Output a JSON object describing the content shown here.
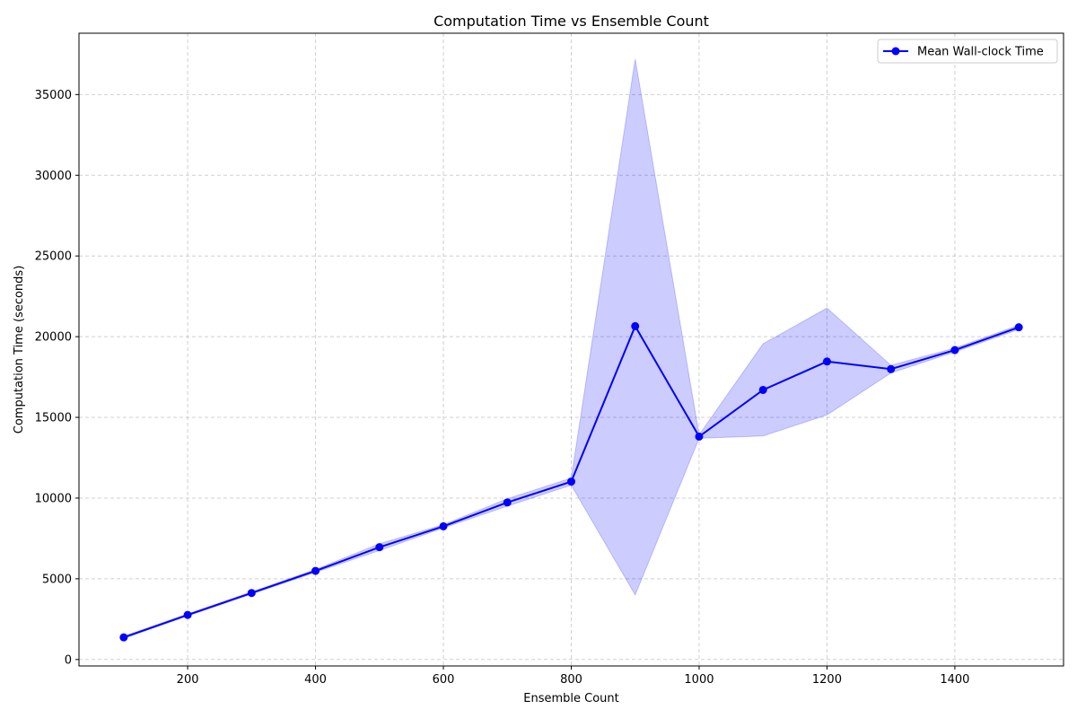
{
  "chart_data": {
    "type": "line",
    "title": "Computation Time vs Ensemble Count",
    "xlabel": "Ensemble Count",
    "ylabel": "Computation Time (seconds)",
    "xlim": [
      30,
      1570
    ],
    "ylim": [
      -400,
      38800
    ],
    "xticks": [
      200,
      400,
      600,
      800,
      1000,
      1200,
      1400
    ],
    "yticks": [
      0,
      5000,
      10000,
      15000,
      20000,
      25000,
      30000,
      35000
    ],
    "grid": true,
    "legend_position": "top-right",
    "series": [
      {
        "name": "Mean Wall-clock Time",
        "color": "#0000ff",
        "x": [
          100,
          200,
          300,
          400,
          500,
          600,
          700,
          800,
          900,
          1000,
          1100,
          1200,
          1300,
          1400,
          1500
        ],
        "y": [
          1370,
          2760,
          4120,
          5490,
          6960,
          8250,
          9730,
          11020,
          20650,
          13810,
          16700,
          18460,
          17990,
          19170,
          20580
        ],
        "band_lower": [
          1300,
          2700,
          4050,
          5400,
          6750,
          8150,
          9500,
          10800,
          4000,
          13700,
          13850,
          15150,
          17750,
          19050,
          20450
        ],
        "band_upper": [
          1440,
          2830,
          4190,
          5580,
          7170,
          8350,
          9960,
          11240,
          37200,
          13920,
          19560,
          21770,
          18230,
          19290,
          20710
        ],
        "band_color": "#0000ff"
      }
    ]
  }
}
